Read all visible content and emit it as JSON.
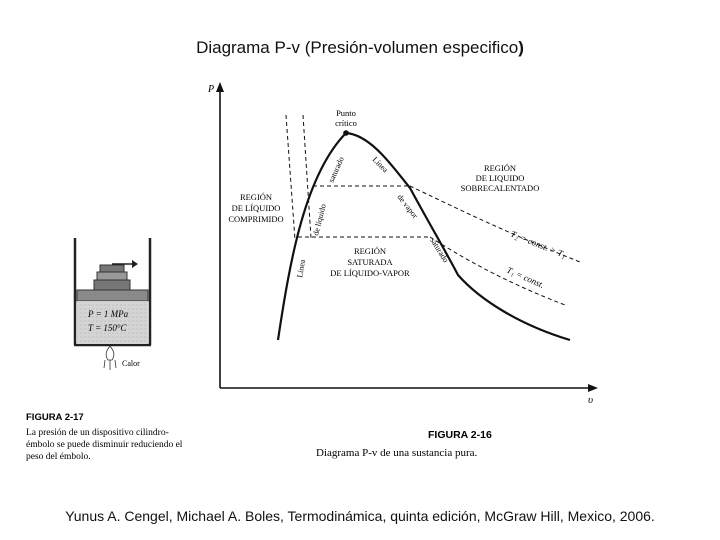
{
  "slide": {
    "title": "Diagrama P-v (Presión-volumen especifico",
    "title_close": ")",
    "citation": "Yunus A. Cengel,  Michael A. Boles, Termodinámica, quinta edición, McGraw Hill, Mexico, 2006."
  },
  "figure_2_17": {
    "label": "FIGURA 2-17",
    "caption_lines": [
      "La presión de un dispositivo cilindro-",
      "émbolo se puede disminuir reduciendo el",
      "peso del émbolo."
    ],
    "pressure_text": "P = 1 MPa",
    "temperature_text": "T = 150°C",
    "heat_label": "Calor"
  },
  "figure_2_16": {
    "label": "FIGURA 2-16",
    "caption": "Diagrama P-v de una sustancia pura.",
    "axis_y": "P",
    "axis_x": "υ",
    "critical_point": [
      "Punto",
      "crítico"
    ],
    "region_compressed": [
      "REGIÓN",
      "DE LÍQUIDO",
      "COMPRIMIDO"
    ],
    "region_superheated": [
      "REGIÓN",
      "DE LIQUIDO",
      "SOBRECALENTADO"
    ],
    "region_saturated": [
      "REGIÓN",
      "SATURADA",
      "DE LÍQUIDO-VAPOR"
    ],
    "liquid_line": [
      "Línea",
      "de líquido",
      "saturado"
    ],
    "vapor_line": [
      "Línea",
      "de vapor",
      "saturado"
    ],
    "isotherm_t2": "T₂ = const. > T₁",
    "isotherm_t1": "T₁ = const."
  }
}
